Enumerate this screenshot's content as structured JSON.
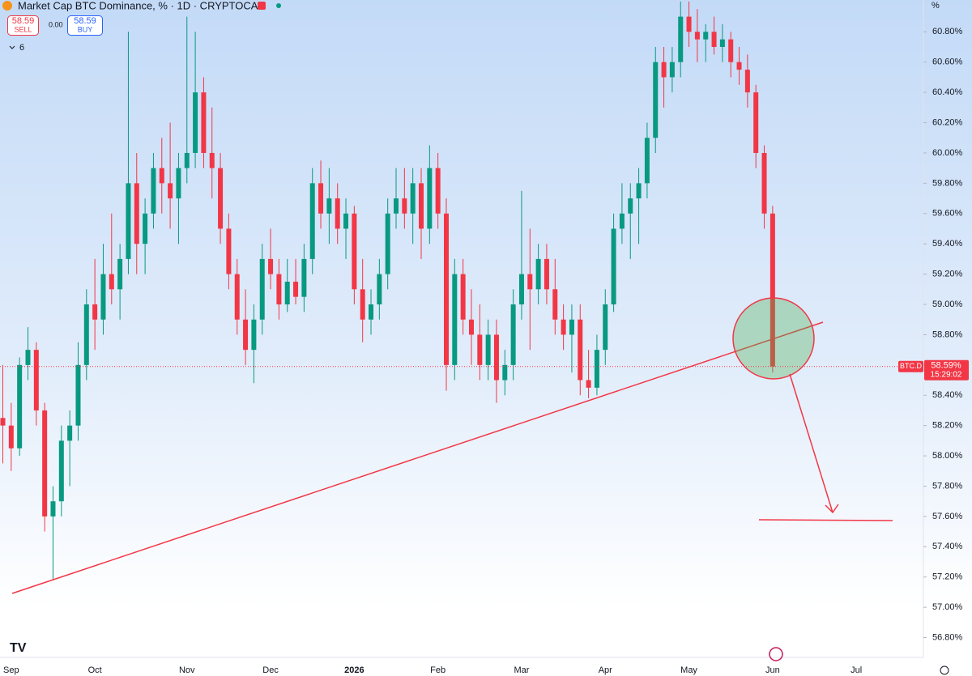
{
  "toolbar": {
    "title": "Market Cap BTC Dominance, % · 1D · CRYPTOCAP",
    "sell_price": "58.59",
    "sell_label": "SELL",
    "spread": "0.00",
    "buy_price": "58.59",
    "buy_label": "BUY",
    "indicator_count": "6"
  },
  "chart_data": {
    "type": "candlestick",
    "y_unit": "%",
    "categories": [
      null,
      "Sep",
      null,
      null,
      null,
      null,
      null,
      null,
      null,
      null,
      null,
      "Oct",
      null,
      null,
      null,
      null,
      null,
      null,
      null,
      null,
      null,
      null,
      "Nov",
      null,
      null,
      null,
      null,
      null,
      null,
      null,
      null,
      null,
      "Dec",
      null,
      null,
      null,
      null,
      null,
      null,
      null,
      null,
      null,
      "2026",
      null,
      null,
      null,
      null,
      null,
      null,
      null,
      null,
      null,
      "Feb",
      null,
      null,
      null,
      null,
      null,
      null,
      null,
      null,
      null,
      "Mar",
      null,
      null,
      null,
      null,
      null,
      null,
      null,
      null,
      null,
      "Apr",
      null,
      null,
      null,
      null,
      null,
      null,
      null,
      null,
      null,
      "May",
      null,
      null,
      null,
      null,
      null,
      null,
      null,
      null,
      null,
      "Jun",
      null,
      null,
      null,
      null,
      null,
      null,
      null,
      null,
      null,
      "Jul",
      null,
      null,
      null,
      null,
      null,
      null,
      null
    ],
    "open": [
      58.25,
      58.2,
      58.05,
      58.6,
      58.7,
      58.3,
      57.6,
      57.7,
      58.1,
      58.2,
      58.6,
      59.0,
      58.9,
      59.2,
      59.1,
      59.3,
      59.8,
      59.4,
      59.6,
      59.9,
      59.8,
      59.7,
      59.9,
      60.0,
      60.4,
      60.0,
      59.9,
      59.5,
      59.2,
      58.9,
      58.7,
      58.9,
      59.3,
      59.2,
      59.0,
      59.15,
      59.05,
      59.3,
      59.8,
      59.6,
      59.7,
      59.5,
      59.6,
      59.1,
      58.9,
      59.0,
      59.2,
      59.6,
      59.7,
      59.6,
      59.8,
      59.5,
      59.9,
      59.6,
      58.6,
      59.2,
      58.9,
      58.8,
      58.6,
      58.8,
      58.5,
      58.6,
      59.0,
      59.2,
      59.1,
      59.3,
      59.1,
      58.9,
      58.8,
      58.9,
      58.5,
      58.45,
      58.7,
      59.0,
      59.5,
      59.6,
      59.7,
      59.8,
      60.1,
      60.6,
      60.5,
      60.6,
      60.9,
      60.8,
      60.75,
      60.8,
      60.7,
      60.75,
      60.6,
      60.55,
      60.4,
      60.0,
      59.6,
      null,
      null,
      null,
      null,
      null,
      null,
      null,
      null,
      null,
      null,
      null,
      null,
      null,
      null,
      null,
      null,
      null
    ],
    "high": [
      58.6,
      58.35,
      58.65,
      58.85,
      58.75,
      58.35,
      57.8,
      58.2,
      58.3,
      58.75,
      59.1,
      59.3,
      59.4,
      59.6,
      59.4,
      60.8,
      60.0,
      59.7,
      60.0,
      60.1,
      60.2,
      60.0,
      60.9,
      60.8,
      60.5,
      60.3,
      60.0,
      59.6,
      59.3,
      59.1,
      59.0,
      59.4,
      59.5,
      59.3,
      59.3,
      59.3,
      59.4,
      59.9,
      59.95,
      59.9,
      59.8,
      59.7,
      59.65,
      59.3,
      59.1,
      59.3,
      59.7,
      59.9,
      59.9,
      59.9,
      59.9,
      60.05,
      60.0,
      59.7,
      59.3,
      59.3,
      59.1,
      59.0,
      58.9,
      58.9,
      58.7,
      59.1,
      59.75,
      59.5,
      59.4,
      59.4,
      59.3,
      59.0,
      59.0,
      59.0,
      58.7,
      58.8,
      59.1,
      59.6,
      59.8,
      59.8,
      59.9,
      60.2,
      60.7,
      60.7,
      60.7,
      61.0,
      61.0,
      60.95,
      60.85,
      60.9,
      60.85,
      60.8,
      60.7,
      60.65,
      60.45,
      60.05,
      59.65,
      null,
      null,
      null,
      null,
      null,
      null,
      null,
      null,
      null,
      null,
      null,
      null,
      null,
      null,
      null,
      null,
      null
    ],
    "low": [
      57.95,
      57.9,
      58.0,
      58.5,
      58.2,
      57.5,
      57.18,
      57.6,
      57.8,
      58.1,
      58.5,
      58.7,
      58.8,
      59.0,
      58.9,
      59.2,
      59.2,
      59.2,
      59.5,
      59.6,
      59.5,
      59.4,
      59.8,
      59.9,
      59.9,
      59.7,
      59.4,
      59.1,
      58.8,
      58.6,
      58.48,
      58.8,
      59.1,
      58.9,
      58.95,
      59.0,
      58.95,
      59.2,
      59.5,
      59.4,
      59.4,
      59.3,
      59.0,
      58.75,
      58.8,
      58.9,
      59.1,
      59.5,
      59.5,
      59.4,
      59.3,
      59.4,
      59.5,
      58.43,
      58.5,
      58.8,
      58.6,
      58.5,
      58.5,
      58.35,
      58.4,
      58.5,
      58.9,
      58.7,
      59.0,
      59.0,
      58.8,
      58.7,
      58.55,
      58.4,
      58.38,
      58.4,
      58.6,
      58.95,
      59.4,
      59.3,
      59.4,
      59.7,
      60.0,
      60.3,
      60.4,
      60.5,
      60.7,
      60.6,
      60.6,
      60.65,
      60.6,
      60.5,
      60.45,
      60.3,
      59.9,
      59.5,
      58.55,
      null,
      null,
      null,
      null,
      null,
      null,
      null,
      null,
      null,
      null,
      null,
      null,
      null,
      null,
      null,
      null,
      null
    ],
    "close": [
      58.2,
      58.05,
      58.6,
      58.7,
      58.3,
      57.6,
      57.7,
      58.1,
      58.2,
      58.6,
      59.0,
      58.9,
      59.2,
      59.1,
      59.3,
      59.8,
      59.4,
      59.6,
      59.9,
      59.8,
      59.7,
      59.9,
      60.0,
      60.4,
      60.0,
      59.9,
      59.5,
      59.2,
      58.9,
      58.7,
      58.9,
      59.3,
      59.2,
      59.0,
      59.15,
      59.05,
      59.3,
      59.8,
      59.6,
      59.7,
      59.5,
      59.6,
      59.1,
      58.9,
      59.0,
      59.2,
      59.6,
      59.7,
      59.6,
      59.8,
      59.5,
      59.9,
      59.6,
      58.6,
      59.2,
      58.9,
      58.8,
      58.6,
      58.8,
      58.5,
      58.6,
      59.0,
      59.2,
      59.1,
      59.3,
      59.1,
      58.9,
      58.8,
      58.9,
      58.5,
      58.45,
      58.7,
      59.0,
      59.5,
      59.6,
      59.7,
      59.8,
      60.1,
      60.6,
      60.5,
      60.6,
      60.9,
      60.8,
      60.75,
      60.8,
      60.7,
      60.75,
      60.6,
      60.55,
      60.4,
      60.0,
      59.6,
      58.59,
      null,
      null,
      null,
      null,
      null,
      null,
      null,
      null,
      null,
      null,
      null,
      null,
      null,
      null,
      null,
      null,
      null
    ],
    "up_color": "#089981",
    "down_color": "#f23645",
    "ylim": [
      56.68,
      61.01
    ],
    "yticks": [
      {
        "value": 56.8,
        "label": "56.80%"
      },
      {
        "value": 57.0,
        "label": "57.00%"
      },
      {
        "value": 57.2,
        "label": "57.20%"
      },
      {
        "value": 57.4,
        "label": "57.40%"
      },
      {
        "value": 57.6,
        "label": "57.60%"
      },
      {
        "value": 57.8,
        "label": "57.80%"
      },
      {
        "value": 58.0,
        "label": "58.00%"
      },
      {
        "value": 58.2,
        "label": "58.20%"
      },
      {
        "value": 58.4,
        "label": "58.40%"
      },
      {
        "value": 58.6,
        "label": "58.60%"
      },
      {
        "value": 58.8,
        "label": "58.80%"
      },
      {
        "value": 59.0,
        "label": "59.00%"
      },
      {
        "value": 59.2,
        "label": "59.20%"
      },
      {
        "value": 59.4,
        "label": "59.40%"
      },
      {
        "value": 59.6,
        "label": "59.60%"
      },
      {
        "value": 59.8,
        "label": "59.80%"
      },
      {
        "value": 60.0,
        "label": "60.00%"
      },
      {
        "value": 60.2,
        "label": "60.20%"
      },
      {
        "value": 60.4,
        "label": "60.40%"
      },
      {
        "value": 60.6,
        "label": "60.60%"
      },
      {
        "value": 60.8,
        "label": "60.80%"
      }
    ],
    "price_tag": {
      "symbol": "BTC.D",
      "label": "58.59%",
      "countdown": "15:29:02"
    },
    "grid": false
  }
}
